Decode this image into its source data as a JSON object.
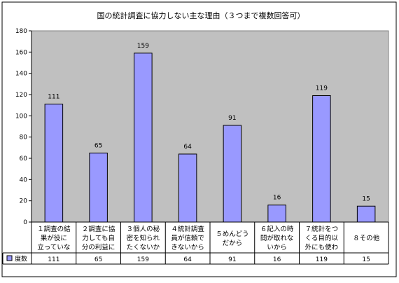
{
  "chart_data": {
    "type": "bar",
    "title": "国の統計調査に協力しない主な理由（３つまで複数回答可）",
    "categories": [
      [
        "１調査の結",
        "果が役に",
        "立っていな"
      ],
      [
        "２調査に協",
        "力しても自",
        "分の利益に"
      ],
      [
        "３個人の秘",
        "密を知られ",
        "たくないか"
      ],
      [
        "４統計調査",
        "員が信頼で",
        "きないから"
      ],
      [
        "５めんどう",
        "だから"
      ],
      [
        "６記入の時",
        "間が取れな",
        "いから"
      ],
      [
        "７統計をつ",
        "くる目的以",
        "外にも使わ"
      ],
      [
        "８その他"
      ]
    ],
    "series": [
      {
        "name": "度数",
        "values": [
          111,
          65,
          159,
          64,
          91,
          16,
          119,
          15
        ]
      }
    ],
    "data_labels": [
      "111",
      "65",
      "159",
      "64",
      "91",
      "16",
      "119",
      "15"
    ],
    "table_values": [
      "111",
      "65",
      "159",
      "64",
      "91",
      "16",
      "119",
      "15"
    ],
    "yticks": [
      "0",
      "20",
      "40",
      "60",
      "80",
      "100",
      "120",
      "140",
      "160",
      "180"
    ],
    "ylim": [
      0,
      180
    ],
    "grid": false,
    "legend": "data-table",
    "colors": {
      "plot_bg": "#c0c0c0",
      "bar_fill": "#9999ff",
      "bar_stroke": "#000000",
      "page_bg": "#ffffff"
    }
  }
}
